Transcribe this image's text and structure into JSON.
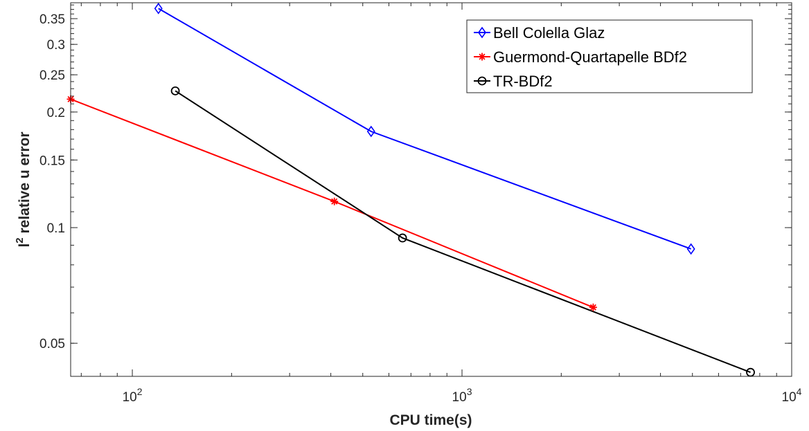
{
  "chart_data": {
    "type": "line",
    "title": "",
    "xlabel": "CPU time(s)",
    "ylabel_base": "l",
    "ylabel_sup": "2",
    "ylabel_rest": " relative u error",
    "xscale": "log",
    "yscale": "log",
    "xlim": [
      65,
      10000
    ],
    "ylim": [
      0.041,
      0.385
    ],
    "grid": false,
    "legend_position": "top-right",
    "x_ticks": [
      {
        "value": 100,
        "base": "10",
        "exp": "2"
      },
      {
        "value": 1000,
        "base": "10",
        "exp": "3"
      },
      {
        "value": 10000,
        "base": "10",
        "exp": "4"
      }
    ],
    "y_ticks": [
      {
        "value": 0.05,
        "label": "0.05"
      },
      {
        "value": 0.1,
        "label": "0.1"
      },
      {
        "value": 0.15,
        "label": "0.15"
      },
      {
        "value": 0.2,
        "label": "0.2"
      },
      {
        "value": 0.25,
        "label": "0.25"
      },
      {
        "value": 0.3,
        "label": "0.3"
      },
      {
        "value": 0.35,
        "label": "0.35"
      }
    ],
    "series": [
      {
        "name": "Bell Colella Glaz",
        "color": "#0000ff",
        "marker": "diamond",
        "x": [
          120,
          530,
          4950
        ],
        "y": [
          0.372,
          0.178,
          0.088
        ]
      },
      {
        "name": "Guermond-Quartapelle BDf2",
        "color": "#ff0000",
        "marker": "asterisk",
        "x": [
          65,
          410,
          2500
        ],
        "y": [
          0.216,
          0.117,
          0.062
        ]
      },
      {
        "name": "TR-BDf2",
        "color": "#000000",
        "marker": "circle",
        "x": [
          135,
          660,
          7500
        ],
        "y": [
          0.227,
          0.094,
          0.042
        ]
      }
    ]
  }
}
